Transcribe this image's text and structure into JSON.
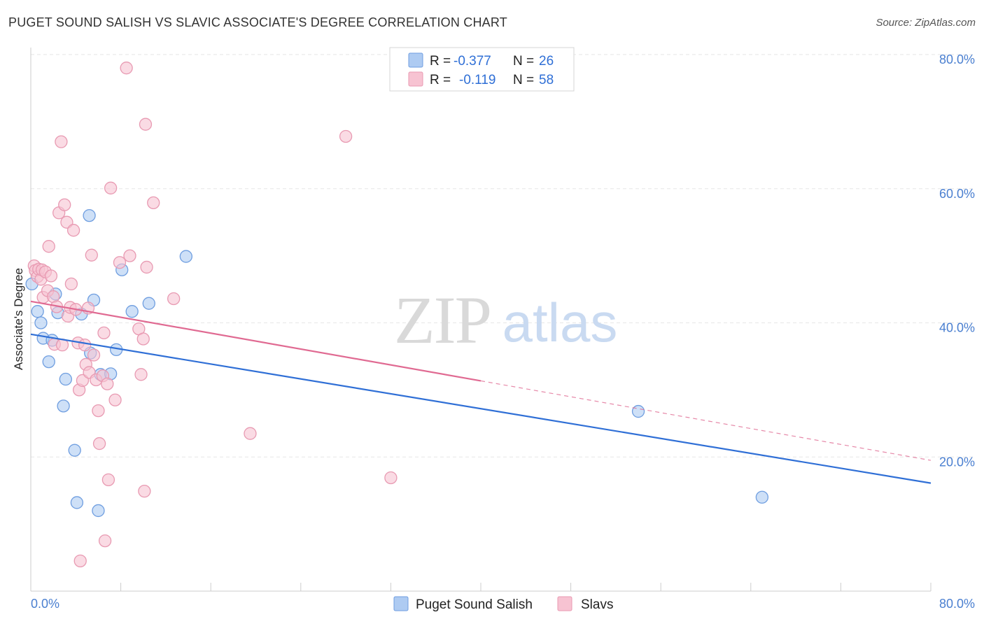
{
  "title": "PUGET SOUND SALISH VS SLAVIC ASSOCIATE'S DEGREE CORRELATION CHART",
  "source": "Source: ZipAtlas.com",
  "watermark": {
    "zip": "ZIP",
    "atlas": "atlas"
  },
  "colors": {
    "blue_fill": "#aecbf2",
    "blue_stroke": "#6f9ee0",
    "blue_line": "#2f6fd6",
    "pink_fill": "#f7c3d2",
    "pink_stroke": "#e89ab2",
    "pink_line": "#e06a92",
    "grid": "#e6e6e6",
    "tick_text": "#4a7fd0"
  },
  "legend": {
    "rows": [
      {
        "r_label": "R =",
        "r_value": "-0.377",
        "n_label": "N =",
        "n_value": "26",
        "swatch": "blue"
      },
      {
        "r_label": "R =",
        "r_value": "-0.119",
        "n_label": "N =",
        "n_value": "58",
        "swatch": "pink"
      }
    ]
  },
  "bottom_legend": [
    {
      "label": "Puget Sound Salish",
      "swatch": "blue"
    },
    {
      "label": "Slavs",
      "swatch": "pink"
    }
  ],
  "chart_data": {
    "type": "scatter",
    "title": "PUGET SOUND SALISH VS SLAVIC ASSOCIATE'S DEGREE CORRELATION CHART",
    "xlabel": "",
    "ylabel": "Associate's Degree",
    "xlim": [
      0,
      80
    ],
    "ylim": [
      0,
      80
    ],
    "x_tick_labels": [
      "0.0%",
      "80.0%"
    ],
    "y_ticks": [
      20,
      40,
      60,
      80
    ],
    "y_tick_labels": [
      "20.0%",
      "40.0%",
      "60.0%",
      "80.0%"
    ],
    "grid": true,
    "legend_position": "top-center",
    "series": [
      {
        "name": "Puget Sound Salish",
        "color": "blue",
        "R": -0.377,
        "N": 26,
        "trend": {
          "x0": 0,
          "y0": 38.3,
          "x1": 80,
          "y1": 16.1,
          "dashed_from": null
        },
        "points": [
          [
            0.1,
            45.8
          ],
          [
            0.6,
            41.7
          ],
          [
            0.9,
            40.0
          ],
          [
            1.1,
            37.7
          ],
          [
            1.6,
            34.2
          ],
          [
            1.9,
            37.4
          ],
          [
            2.2,
            44.3
          ],
          [
            2.4,
            41.5
          ],
          [
            2.9,
            27.6
          ],
          [
            3.1,
            31.6
          ],
          [
            3.9,
            21.0
          ],
          [
            4.1,
            13.2
          ],
          [
            4.5,
            41.3
          ],
          [
            5.2,
            56.0
          ],
          [
            5.3,
            35.5
          ],
          [
            5.6,
            43.4
          ],
          [
            6.0,
            12.0
          ],
          [
            6.2,
            32.3
          ],
          [
            7.1,
            32.4
          ],
          [
            7.6,
            36.0
          ],
          [
            8.1,
            47.9
          ],
          [
            9.0,
            41.7
          ],
          [
            10.5,
            42.9
          ],
          [
            13.8,
            49.9
          ],
          [
            54.0,
            26.8
          ],
          [
            65.0,
            14.0
          ]
        ]
      },
      {
        "name": "Slavs",
        "color": "pink",
        "R": -0.119,
        "N": 58,
        "trend": {
          "x0": 0,
          "y0": 43.2,
          "x1": 80,
          "y1": 19.5,
          "dashed_from": 40
        },
        "points": [
          [
            0.3,
            48.5
          ],
          [
            0.4,
            47.8
          ],
          [
            0.6,
            46.9
          ],
          [
            0.7,
            48.0
          ],
          [
            0.9,
            46.5
          ],
          [
            1.0,
            47.9
          ],
          [
            1.1,
            43.8
          ],
          [
            1.3,
            47.6
          ],
          [
            1.5,
            44.8
          ],
          [
            1.6,
            51.4
          ],
          [
            1.8,
            47.0
          ],
          [
            2.0,
            43.9
          ],
          [
            2.1,
            36.8
          ],
          [
            2.3,
            42.4
          ],
          [
            2.5,
            56.4
          ],
          [
            2.7,
            67.0
          ],
          [
            2.8,
            36.7
          ],
          [
            3.0,
            57.6
          ],
          [
            3.2,
            55.0
          ],
          [
            3.3,
            41.0
          ],
          [
            3.5,
            42.3
          ],
          [
            3.6,
            45.8
          ],
          [
            3.8,
            53.8
          ],
          [
            4.0,
            42.0
          ],
          [
            4.2,
            37.0
          ],
          [
            4.3,
            30.0
          ],
          [
            4.4,
            4.5
          ],
          [
            4.6,
            31.4
          ],
          [
            4.8,
            36.7
          ],
          [
            4.9,
            33.8
          ],
          [
            5.1,
            42.2
          ],
          [
            5.2,
            32.6
          ],
          [
            5.4,
            50.1
          ],
          [
            5.6,
            35.2
          ],
          [
            5.8,
            31.5
          ],
          [
            6.0,
            26.9
          ],
          [
            6.1,
            22.0
          ],
          [
            6.4,
            32.1
          ],
          [
            6.5,
            38.5
          ],
          [
            6.6,
            7.5
          ],
          [
            6.8,
            30.9
          ],
          [
            6.9,
            16.6
          ],
          [
            7.1,
            60.1
          ],
          [
            7.5,
            28.5
          ],
          [
            7.9,
            49.0
          ],
          [
            8.5,
            78.0
          ],
          [
            8.8,
            50.0
          ],
          [
            9.6,
            39.1
          ],
          [
            9.8,
            32.3
          ],
          [
            10.0,
            37.6
          ],
          [
            10.1,
            14.9
          ],
          [
            10.3,
            48.3
          ],
          [
            10.2,
            69.6
          ],
          [
            10.9,
            57.9
          ],
          [
            12.7,
            43.6
          ],
          [
            19.5,
            23.5
          ],
          [
            28.0,
            67.8
          ],
          [
            32.0,
            16.9
          ]
        ]
      }
    ]
  }
}
